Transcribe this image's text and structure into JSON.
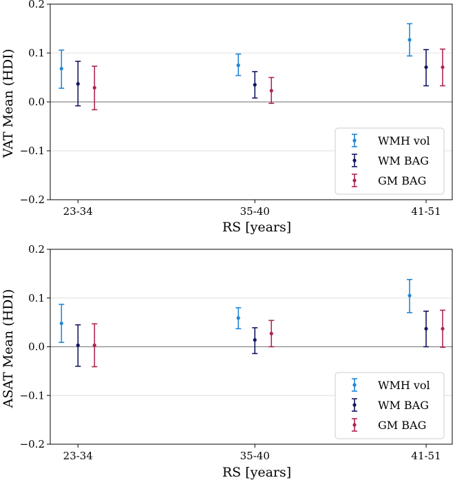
{
  "chart_data": [
    {
      "type": "errorbar",
      "title": "",
      "xlabel": "RS [years]",
      "ylabel": "VAT Mean (HDI)",
      "categories": [
        "23-34",
        "35-40",
        "41-51"
      ],
      "ylim": [
        -0.2,
        0.2
      ],
      "yticks": [
        -0.2,
        -0.1,
        0.0,
        0.1,
        0.2
      ],
      "ytick_labels": [
        "−0.2",
        "−0.1",
        "0.0",
        "0.1",
        "0.2"
      ],
      "grid": "horizontal",
      "legend_position": "bottom-right",
      "series": [
        {
          "name": "WMH vol",
          "color": "#1f86d8",
          "values": [
            0.068,
            0.075,
            0.127
          ],
          "lower": [
            0.028,
            0.054,
            0.094
          ],
          "upper": [
            0.106,
            0.098,
            0.16
          ]
        },
        {
          "name": "WM BAG",
          "color": "#131560",
          "values": [
            0.037,
            0.035,
            0.071
          ],
          "lower": [
            -0.008,
            0.008,
            0.033
          ],
          "upper": [
            0.083,
            0.062,
            0.107
          ]
        },
        {
          "name": "GM BAG",
          "color": "#b0234f",
          "values": [
            0.029,
            0.023,
            0.071
          ],
          "lower": [
            -0.016,
            -0.003,
            0.033
          ],
          "upper": [
            0.073,
            0.05,
            0.108
          ]
        }
      ]
    },
    {
      "type": "errorbar",
      "title": "",
      "xlabel": "RS [years]",
      "ylabel": "ASAT Mean (HDI)",
      "categories": [
        "23-34",
        "35-40",
        "41-51"
      ],
      "ylim": [
        -0.2,
        0.2
      ],
      "yticks": [
        -0.2,
        -0.1,
        0.0,
        0.1,
        0.2
      ],
      "ytick_labels": [
        "−0.2",
        "−0.1",
        "0.0",
        "0.1",
        "0.2"
      ],
      "grid": "horizontal",
      "legend_position": "bottom-right",
      "series": [
        {
          "name": "WMH vol",
          "color": "#1f86d8",
          "values": [
            0.048,
            0.059,
            0.105
          ],
          "lower": [
            0.009,
            0.037,
            0.07
          ],
          "upper": [
            0.087,
            0.08,
            0.138
          ]
        },
        {
          "name": "WM BAG",
          "color": "#131560",
          "values": [
            0.003,
            0.014,
            0.037
          ],
          "lower": [
            -0.04,
            -0.014,
            0.0
          ],
          "upper": [
            0.045,
            0.039,
            0.073
          ]
        },
        {
          "name": "GM BAG",
          "color": "#b0234f",
          "values": [
            0.003,
            0.027,
            0.037
          ],
          "lower": [
            -0.041,
            0.0,
            -0.001
          ],
          "upper": [
            0.047,
            0.054,
            0.075
          ]
        }
      ]
    }
  ]
}
